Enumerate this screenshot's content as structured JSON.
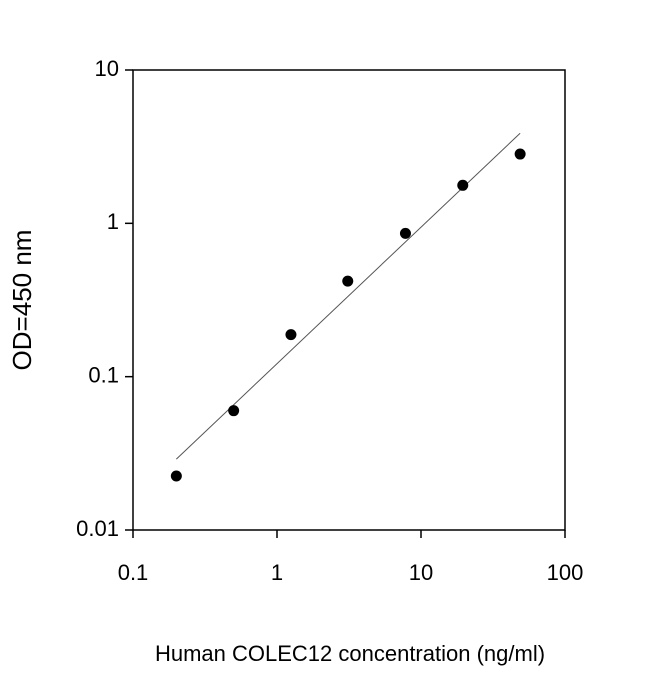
{
  "chart_data": {
    "type": "scatter",
    "x_label": "Human COLEC12 concentration (ng/ml)",
    "y_label": "OD=450 nm",
    "log_x": true,
    "log_y": true,
    "xlim": [
      0.1,
      100
    ],
    "xticks": [
      0.1,
      1,
      10,
      100
    ],
    "ylim": [
      0.01,
      10
    ],
    "yticks": [
      0.01,
      0.1,
      1,
      10
    ],
    "series": [
      {
        "type": "scatter",
        "color": "#000000",
        "x": [
          0.2,
          0.5,
          1.25,
          3.1,
          7.8,
          19.5,
          48.8
        ],
        "values": [
          0.0225,
          0.06,
          0.188,
          0.42,
          0.86,
          1.77,
          2.83
        ]
      },
      {
        "type": "line",
        "color": "#555555",
        "x": [
          0.2,
          48.8
        ],
        "values": [
          0.029,
          3.87
        ]
      }
    ]
  }
}
